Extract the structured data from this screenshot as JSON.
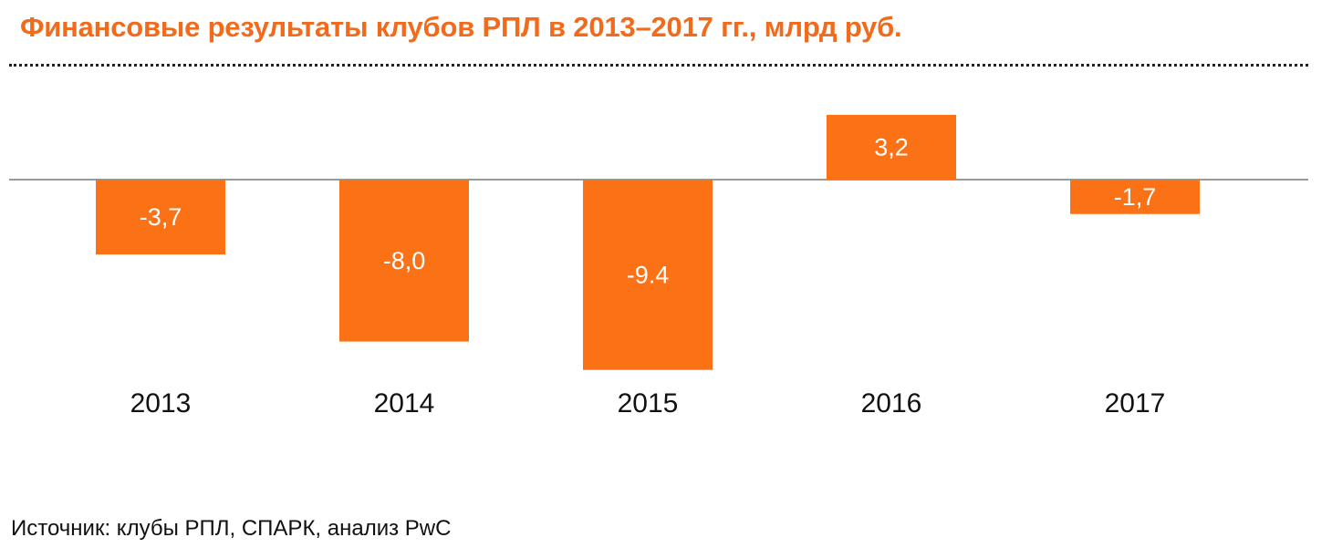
{
  "chart_data": {
    "type": "bar",
    "title": "Финансовые результаты клубов РПЛ в 2013–2017 гг., млрд руб.",
    "categories": [
      "2013",
      "2014",
      "2015",
      "2016",
      "2017"
    ],
    "values": [
      -3.7,
      -8.0,
      -9.4,
      3.2,
      -1.7
    ],
    "value_labels": [
      "-3,7",
      "-8,0",
      "-9.4",
      "3,2",
      "-1,7"
    ],
    "xlabel": "",
    "ylabel": "",
    "ylim": [
      -9.4,
      3.2
    ],
    "grid": false,
    "legend": "none",
    "bar_color": "#fb7116",
    "baseline_color": "#999999"
  },
  "title_color": "#f26a1b",
  "source": "Источник: клубы РПЛ, СПАРК, анализ PwC"
}
